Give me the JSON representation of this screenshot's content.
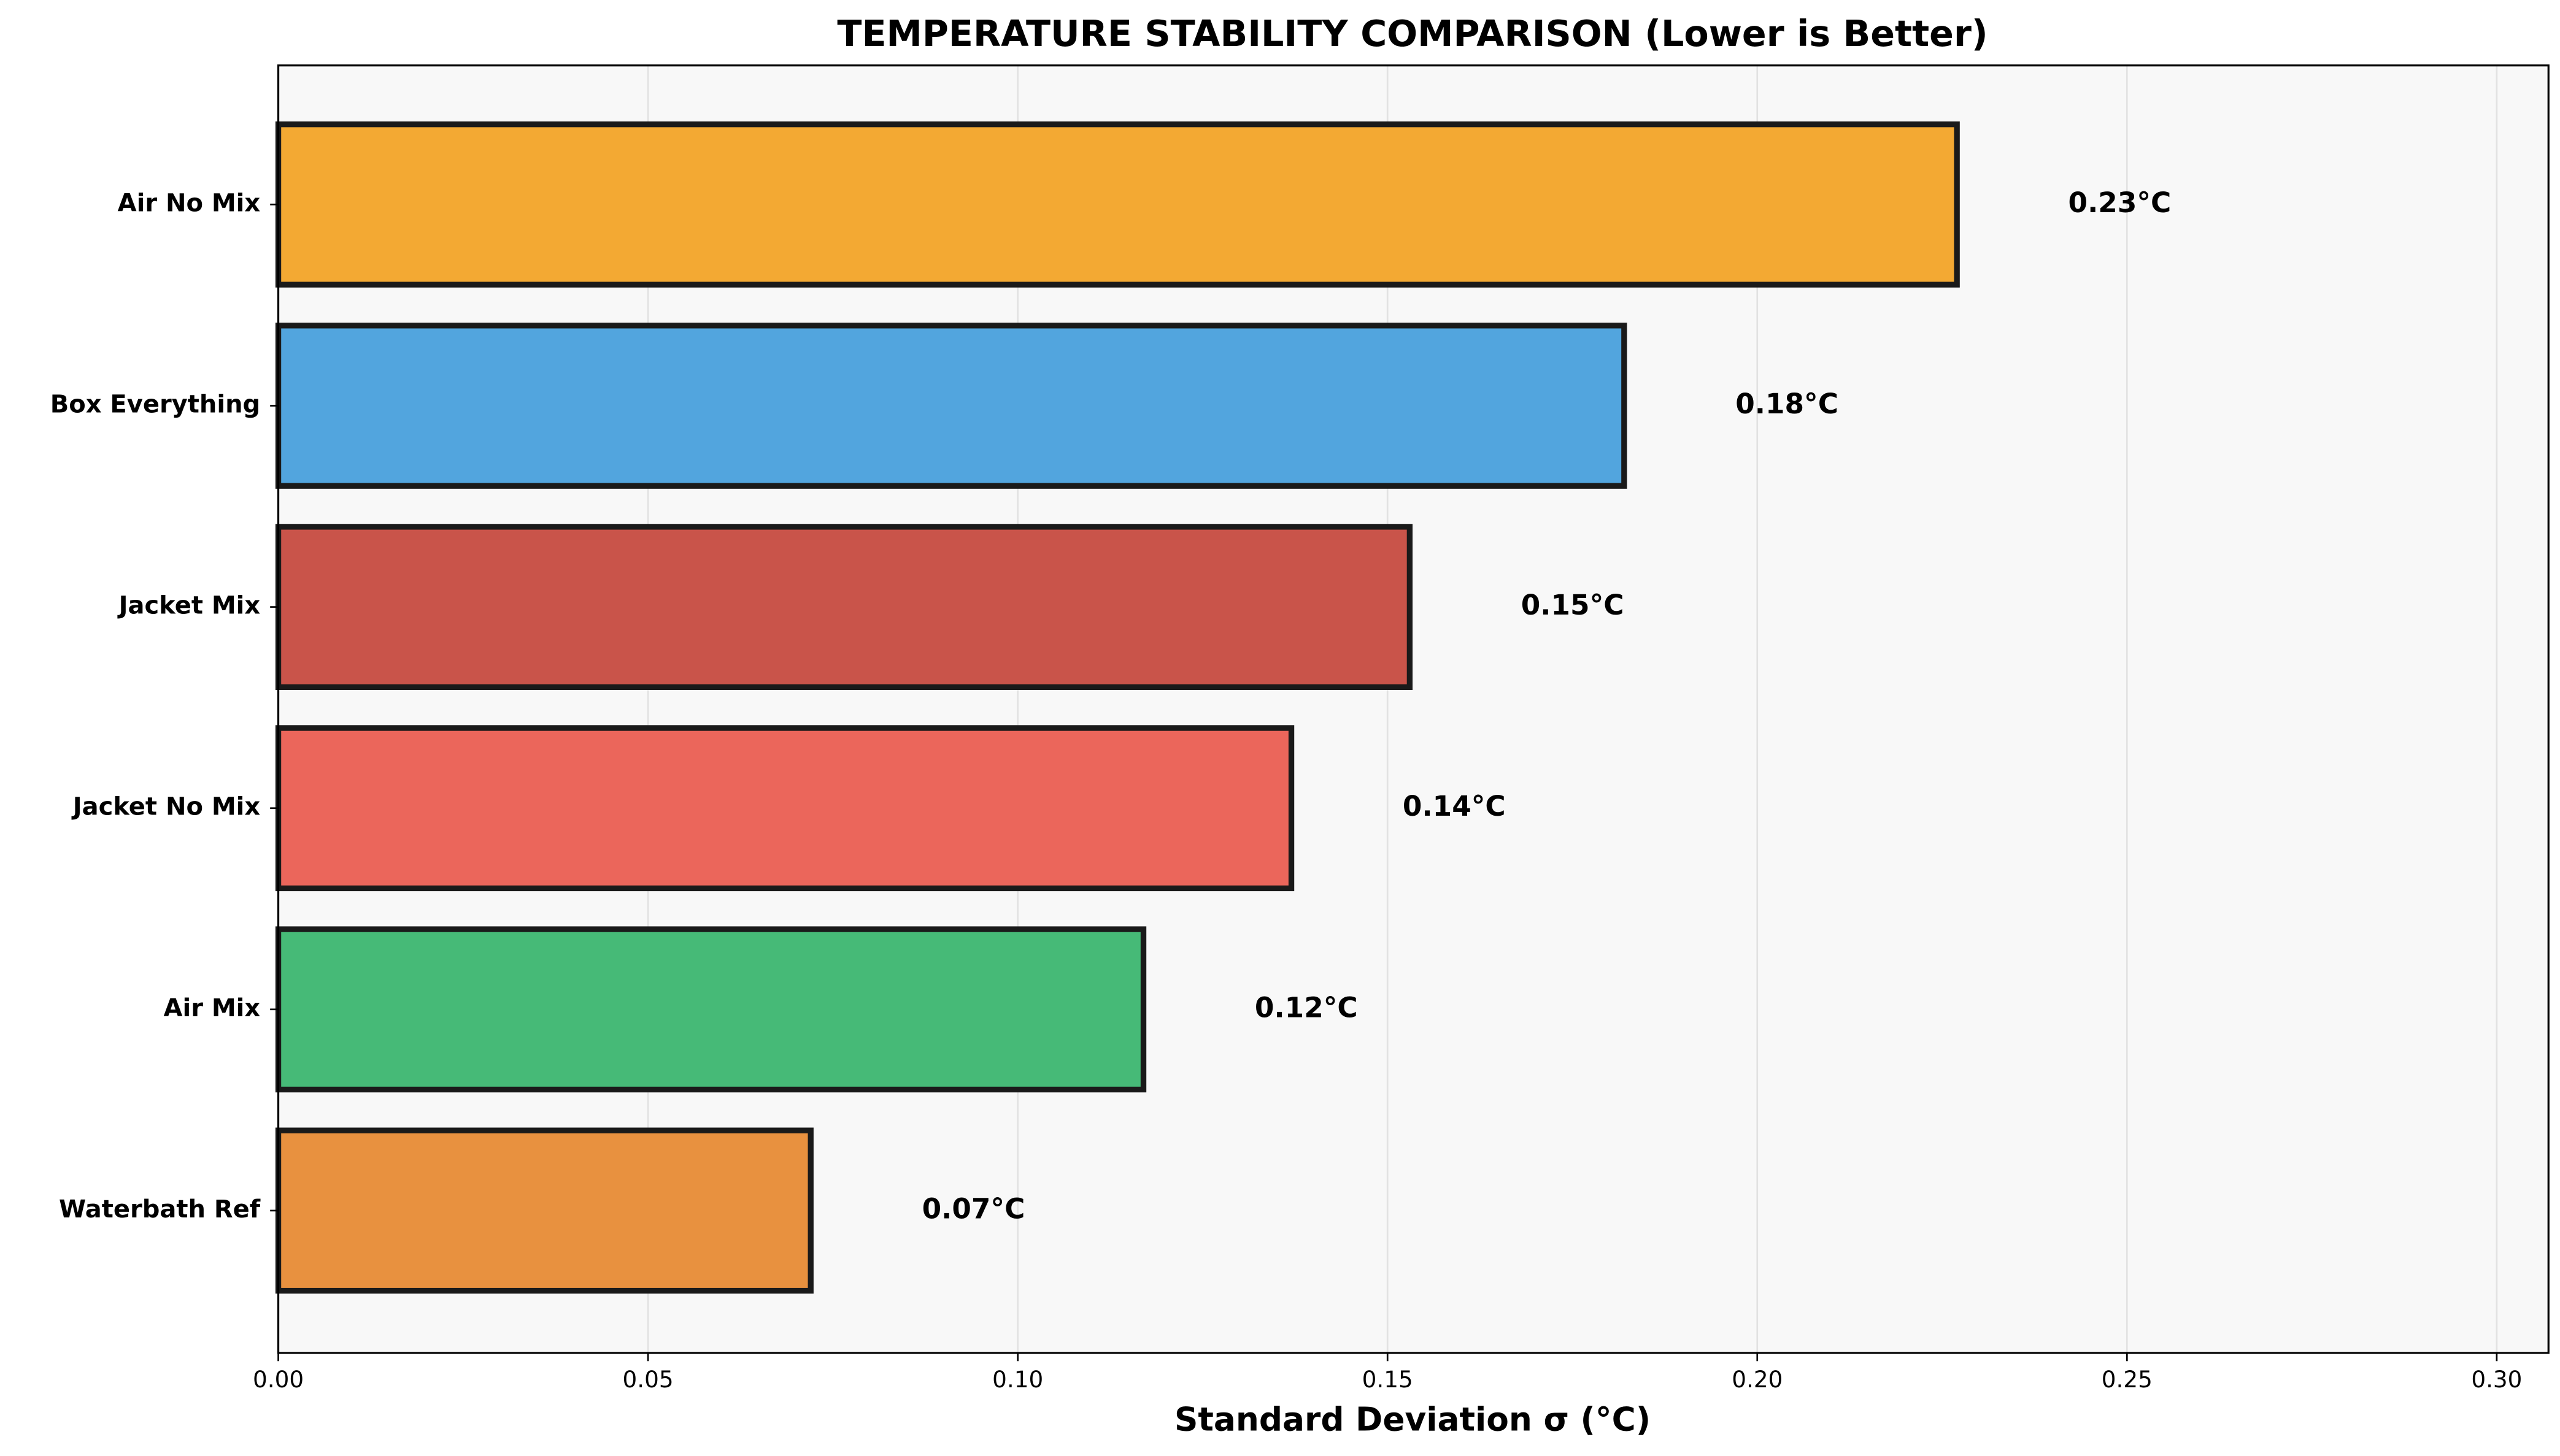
{
  "chart_data": {
    "type": "barh",
    "title": "TEMPERATURE STABILITY COMPARISON (Lower is Better)",
    "x_label": "Standard Deviation σ (°C)",
    "categories": [
      "Air No Mix",
      "Box Everything",
      "Jacket Mix",
      "Jacket No Mix",
      "Air Mix",
      "Waterbath Ref"
    ],
    "values": [
      0.227,
      0.182,
      0.153,
      0.137,
      0.117,
      0.072
    ],
    "value_labels": [
      "0.23°C",
      "0.18°C",
      "0.15°C",
      "0.14°C",
      "0.12°C",
      "0.07°C"
    ],
    "colors": [
      "#f3a933",
      "#52a5de",
      "#c9544a",
      "#eb665b",
      "#46ba77",
      "#e8913f"
    ],
    "xlim": [
      0,
      0.307
    ],
    "xticks": [
      {
        "value": 0,
        "label": "0.00"
      },
      0.05,
      {
        "value": 0.1,
        "label": "0.10"
      },
      0.15,
      {
        "value": 0.2,
        "label": "0.20"
      },
      0.25,
      {
        "value": 0.3,
        "label": "0.30"
      }
    ],
    "grid": true
  }
}
